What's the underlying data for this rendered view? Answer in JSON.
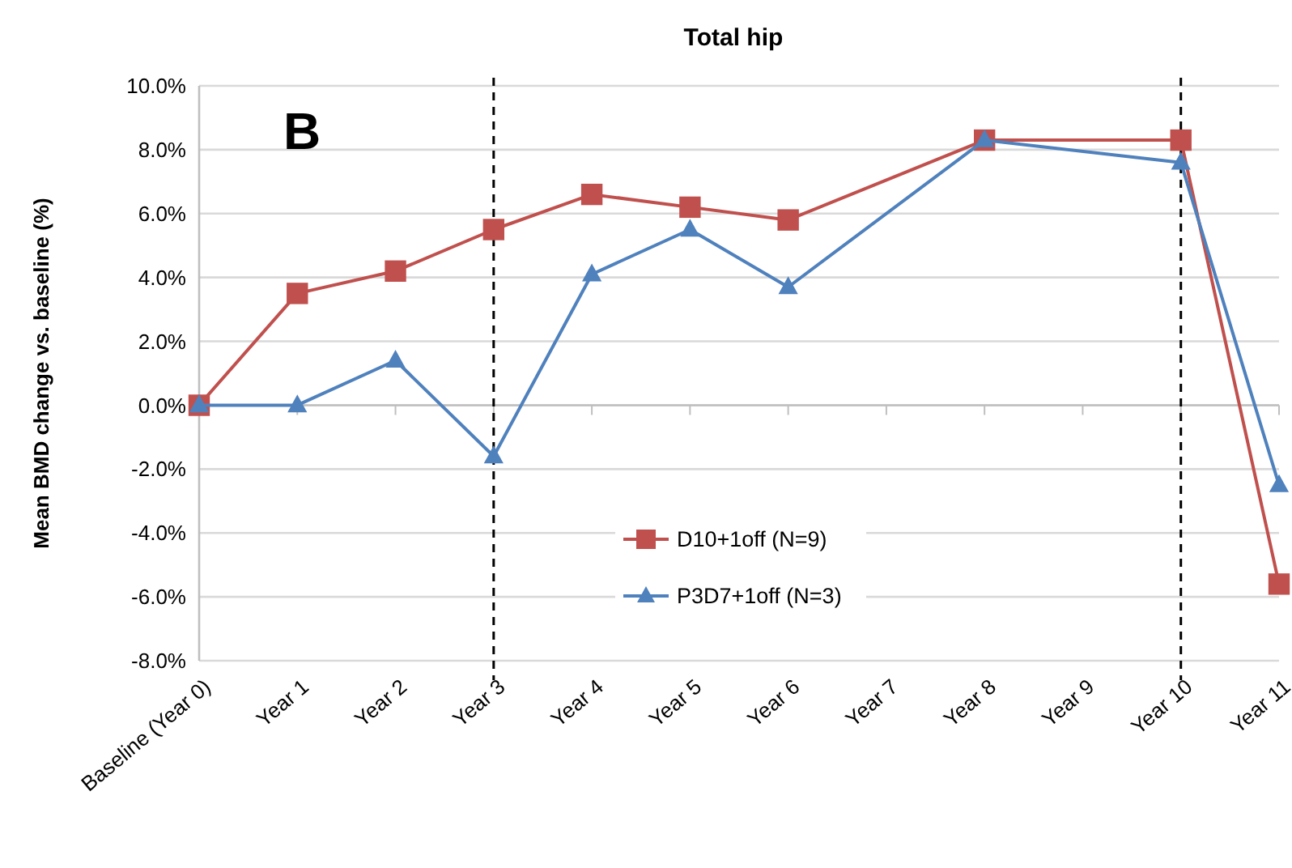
{
  "chart_data": {
    "type": "line",
    "title": "Total hip",
    "ylabel": "Mean BMD change vs. baseline (%)",
    "categories": [
      "Baseline (Year 0)",
      "Year 1",
      "Year 2",
      "Year 3",
      "Year 4",
      "Year 5",
      "Year 6",
      "Year 7",
      "Year 8",
      "Year 9",
      "Year 10",
      "Year 11"
    ],
    "series": [
      {
        "name": "D10+1off (N=9)",
        "color": "#c0504d",
        "marker": "square",
        "values": [
          0,
          3.5,
          4.2,
          5.5,
          6.6,
          6.2,
          5.8,
          null,
          8.3,
          null,
          8.3,
          -5.6
        ]
      },
      {
        "name": "P3D7+1off (N=3)",
        "color": "#4f81bd",
        "marker": "triangle",
        "values": [
          0,
          0,
          1.4,
          -1.6,
          4.1,
          5.5,
          3.7,
          null,
          8.3,
          null,
          7.6,
          -2.5
        ]
      }
    ],
    "ylim": [
      -8,
      10
    ],
    "yticks": [
      {
        "value": -8,
        "label": "-8.0%"
      },
      {
        "value": -6,
        "label": "-6.0%"
      },
      {
        "value": -4,
        "label": "-4.0%"
      },
      {
        "value": -2,
        "label": "-2.0%"
      },
      {
        "value": 0,
        "label": "0.0%"
      },
      {
        "value": 2,
        "label": "2.0%"
      },
      {
        "value": 4,
        "label": "4.0%"
      },
      {
        "value": 6,
        "label": "6.0%"
      },
      {
        "value": 8,
        "label": "8.0%"
      },
      {
        "value": 10,
        "label": "10.0%"
      }
    ],
    "ref_lines": [
      {
        "axis": "x",
        "value": "Year 3",
        "color": "#000000",
        "line_style": "dashed"
      },
      {
        "axis": "x",
        "value": "Year 10",
        "color": "#000000",
        "line_style": "dashed"
      }
    ],
    "annotations": [
      "B"
    ],
    "grid": "y",
    "legend": "bottom",
    "line_style": "solid"
  }
}
